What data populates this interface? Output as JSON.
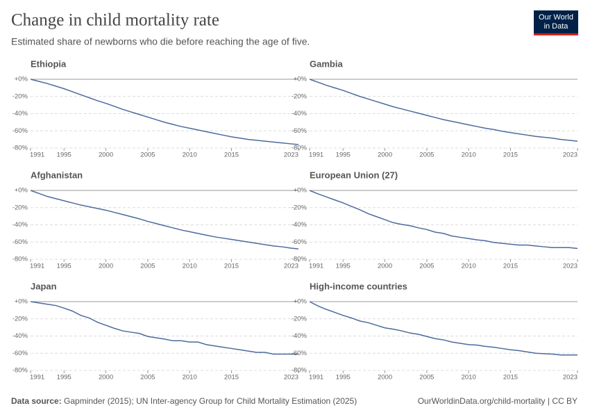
{
  "title": "Change in child mortality rate",
  "subtitle": "Estimated share of newborns who die before reaching the age of five.",
  "source_label": "Data source:",
  "source": "Gapminder (2015); UN Inter-agency Group for Child Mortality Estimation (2025)",
  "url": "OurWorldinData.org/child-mortality | CC BY",
  "logo": [
    "Our World",
    "in Data"
  ],
  "chart_data": [
    {
      "type": "line",
      "title": "Ethiopia",
      "color": "#4c6a9c",
      "xlim": [
        1991,
        2023
      ],
      "xticks": [
        1991,
        1995,
        2000,
        2005,
        2010,
        2015,
        2023
      ],
      "ylim": [
        -80,
        0
      ],
      "yticks": [
        {
          "value": 0,
          "label": "+0%"
        },
        {
          "value": -20,
          "label": "-20%"
        },
        {
          "value": -40,
          "label": "-40%"
        },
        {
          "value": -60,
          "label": "-60%"
        },
        {
          "value": -80,
          "label": "-80%"
        }
      ],
      "grid": true,
      "x": [
        1991,
        1992,
        1993,
        1994,
        1995,
        1996,
        1997,
        1998,
        1999,
        2000,
        2001,
        2002,
        2003,
        2004,
        2005,
        2006,
        2007,
        2008,
        2009,
        2010,
        2011,
        2012,
        2013,
        2014,
        2015,
        2016,
        2017,
        2018,
        2019,
        2020,
        2021,
        2022,
        2023
      ],
      "values": [
        0,
        -2.5,
        -5,
        -8,
        -11,
        -14.5,
        -18,
        -21.5,
        -25,
        -28,
        -31.5,
        -35,
        -38,
        -41,
        -44,
        -47,
        -50,
        -52.5,
        -55,
        -57,
        -59,
        -61,
        -63,
        -65,
        -67,
        -68.5,
        -70,
        -71,
        -72,
        -73,
        -74,
        -75,
        -76
      ]
    },
    {
      "type": "line",
      "title": "Gambia",
      "color": "#4c6a9c",
      "xlim": [
        1991,
        2023
      ],
      "xticks": [
        1991,
        1995,
        2000,
        2005,
        2010,
        2015,
        2023
      ],
      "ylim": [
        -80,
        0
      ],
      "yticks": [
        {
          "value": 0,
          "label": "+0%"
        },
        {
          "value": -20,
          "label": "-20%"
        },
        {
          "value": -40,
          "label": "-40%"
        },
        {
          "value": -60,
          "label": "-60%"
        },
        {
          "value": -80,
          "label": "-80%"
        }
      ],
      "grid": true,
      "x": [
        1991,
        1992,
        1993,
        1994,
        1995,
        1996,
        1997,
        1998,
        1999,
        2000,
        2001,
        2002,
        2003,
        2004,
        2005,
        2006,
        2007,
        2008,
        2009,
        2010,
        2011,
        2012,
        2013,
        2014,
        2015,
        2016,
        2017,
        2018,
        2019,
        2020,
        2021,
        2022,
        2023
      ],
      "values": [
        0,
        -3.5,
        -7,
        -10,
        -13,
        -16.5,
        -20,
        -23,
        -26,
        -29,
        -32,
        -34.5,
        -37,
        -39.5,
        -42,
        -44.5,
        -47,
        -49,
        -51,
        -53,
        -55,
        -57,
        -58.5,
        -60.5,
        -62,
        -63.5,
        -65,
        -66.5,
        -67.5,
        -68.5,
        -70,
        -71,
        -72
      ]
    },
    {
      "type": "line",
      "title": "Afghanistan",
      "color": "#4c6a9c",
      "xlim": [
        1991,
        2023
      ],
      "xticks": [
        1991,
        1995,
        2000,
        2005,
        2010,
        2015,
        2023
      ],
      "ylim": [
        -80,
        0
      ],
      "yticks": [
        {
          "value": 0,
          "label": "+0%"
        },
        {
          "value": -20,
          "label": "-20%"
        },
        {
          "value": -40,
          "label": "-40%"
        },
        {
          "value": -60,
          "label": "-60%"
        },
        {
          "value": -80,
          "label": "-80%"
        }
      ],
      "grid": true,
      "x": [
        1991,
        1992,
        1993,
        1994,
        1995,
        1996,
        1997,
        1998,
        1999,
        2000,
        2001,
        2002,
        2003,
        2004,
        2005,
        2006,
        2007,
        2008,
        2009,
        2010,
        2011,
        2012,
        2013,
        2014,
        2015,
        2016,
        2017,
        2018,
        2019,
        2020,
        2021,
        2022,
        2023
      ],
      "values": [
        0,
        -3.5,
        -7,
        -9.5,
        -12,
        -14.5,
        -17,
        -19,
        -21,
        -23,
        -25.5,
        -28,
        -30.5,
        -33,
        -36,
        -38.5,
        -41,
        -43.5,
        -46,
        -48,
        -50,
        -52,
        -54,
        -55.5,
        -57,
        -58.5,
        -60,
        -61.5,
        -63,
        -64.5,
        -65.5,
        -67,
        -68
      ]
    },
    {
      "type": "line",
      "title": "European Union (27)",
      "color": "#4c6a9c",
      "xlim": [
        1991,
        2023
      ],
      "xticks": [
        1991,
        1995,
        2000,
        2005,
        2010,
        2015,
        2023
      ],
      "ylim": [
        -80,
        0
      ],
      "yticks": [
        {
          "value": 0,
          "label": "+0%"
        },
        {
          "value": -20,
          "label": "-20%"
        },
        {
          "value": -40,
          "label": "-40%"
        },
        {
          "value": -60,
          "label": "-60%"
        },
        {
          "value": -80,
          "label": "-80%"
        }
      ],
      "grid": true,
      "x": [
        1991,
        1992,
        1993,
        1994,
        1995,
        1996,
        1997,
        1998,
        1999,
        2000,
        2001,
        2002,
        2003,
        2004,
        2005,
        2006,
        2007,
        2008,
        2009,
        2010,
        2011,
        2012,
        2013,
        2014,
        2015,
        2016,
        2017,
        2018,
        2019,
        2020,
        2021,
        2022,
        2023
      ],
      "values": [
        0,
        -4,
        -7.5,
        -11,
        -14.5,
        -18.5,
        -22.5,
        -27,
        -30.5,
        -34,
        -37.5,
        -39.5,
        -41,
        -43.5,
        -45.5,
        -48.5,
        -50,
        -53,
        -54.5,
        -56,
        -57.5,
        -58.5,
        -60.5,
        -61.5,
        -62.5,
        -63.5,
        -63.5,
        -64.5,
        -65.5,
        -66.5,
        -66.5,
        -66.5,
        -67.5
      ]
    },
    {
      "type": "line",
      "title": "Japan",
      "color": "#4c6a9c",
      "xlim": [
        1991,
        2023
      ],
      "xticks": [
        1991,
        1995,
        2000,
        2005,
        2010,
        2015,
        2023
      ],
      "ylim": [
        -80,
        0
      ],
      "yticks": [
        {
          "value": 0,
          "label": "+0%"
        },
        {
          "value": -20,
          "label": "-20%"
        },
        {
          "value": -40,
          "label": "-40%"
        },
        {
          "value": -60,
          "label": "-60%"
        },
        {
          "value": -80,
          "label": "-80%"
        }
      ],
      "grid": true,
      "x": [
        1991,
        1992,
        1993,
        1994,
        1995,
        1996,
        1997,
        1998,
        1999,
        2000,
        2001,
        2002,
        2003,
        2004,
        2005,
        2006,
        2007,
        2008,
        2009,
        2010,
        2011,
        2012,
        2013,
        2014,
        2015,
        2016,
        2017,
        2018,
        2019,
        2020,
        2021,
        2022,
        2023
      ],
      "values": [
        0,
        -1.5,
        -3,
        -4.5,
        -7.5,
        -11,
        -16,
        -19,
        -24,
        -27.5,
        -31,
        -34,
        -35.5,
        -37,
        -40.5,
        -42,
        -43.5,
        -45.5,
        -45.5,
        -47,
        -47,
        -50,
        -51.5,
        -53,
        -54.5,
        -56,
        -57.5,
        -59,
        -59,
        -61,
        -61,
        -61,
        -61
      ]
    },
    {
      "type": "line",
      "title": "High-income countries",
      "color": "#4c6a9c",
      "xlim": [
        1991,
        2023
      ],
      "xticks": [
        1991,
        1995,
        2000,
        2005,
        2010,
        2015,
        2023
      ],
      "ylim": [
        -80,
        0
      ],
      "yticks": [
        {
          "value": 0,
          "label": "+0%"
        },
        {
          "value": -20,
          "label": "-20%"
        },
        {
          "value": -40,
          "label": "-40%"
        },
        {
          "value": -60,
          "label": "-60%"
        },
        {
          "value": -80,
          "label": "-80%"
        }
      ],
      "grid": true,
      "x": [
        1991,
        1992,
        1993,
        1994,
        1995,
        1996,
        1997,
        1998,
        1999,
        2000,
        2001,
        2002,
        2003,
        2004,
        2005,
        2006,
        2007,
        2008,
        2009,
        2010,
        2011,
        2012,
        2013,
        2014,
        2015,
        2016,
        2017,
        2018,
        2019,
        2020,
        2021,
        2022,
        2023
      ],
      "values": [
        0,
        -5,
        -9,
        -12.5,
        -16,
        -19,
        -22.5,
        -24.5,
        -27.5,
        -30.5,
        -32,
        -34,
        -36.5,
        -38,
        -40.5,
        -43,
        -44.5,
        -47,
        -48.5,
        -50,
        -50.5,
        -52,
        -53,
        -54.5,
        -56,
        -57,
        -58.5,
        -60,
        -60.5,
        -61,
        -62,
        -62,
        -62
      ]
    }
  ]
}
